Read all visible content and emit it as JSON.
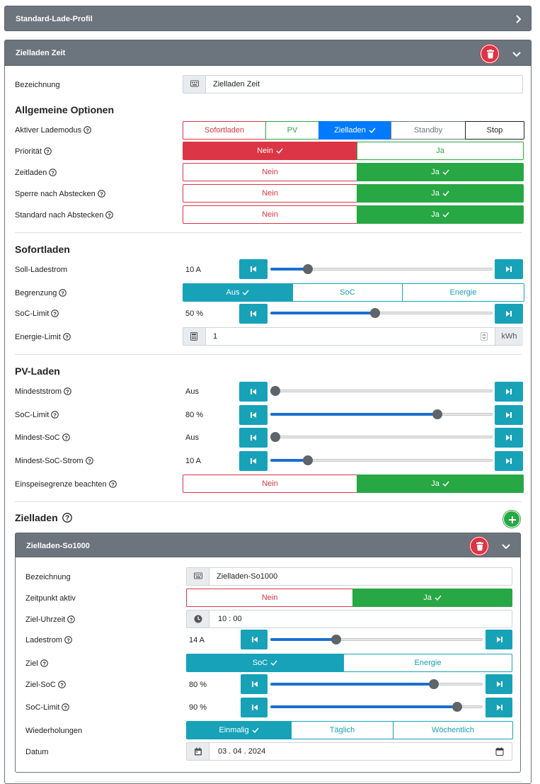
{
  "profile_header": {
    "title": "Standard-Lade-Profil"
  },
  "zielladen_zeit": {
    "title": "Zielladen Zeit",
    "bezeichnung": {
      "label": "Bezeichnung",
      "value": "Zielladen Zeit"
    },
    "allgemein": {
      "heading": "Allgemeine Optionen",
      "lademodus": {
        "label": "Aktiver Lademodus",
        "options": [
          "Sofortladen",
          "PV",
          "Zielladen",
          "Standby",
          "Stop"
        ],
        "selected": "Zielladen"
      },
      "prioritaet": {
        "label": "Priorität",
        "options": [
          "Nein",
          "Ja"
        ],
        "selected": "Nein"
      },
      "zeitladen": {
        "label": "Zeitladen",
        "options": [
          "Nein",
          "Ja"
        ],
        "selected": "Ja"
      },
      "sperre": {
        "label": "Sperre nach Abstecken",
        "options": [
          "Nein",
          "Ja"
        ],
        "selected": "Ja"
      },
      "standard": {
        "label": "Standard nach Abstecken",
        "options": [
          "Nein",
          "Ja"
        ],
        "selected": "Ja"
      }
    },
    "sofortladen": {
      "heading": "Sofortladen",
      "soll_ladestrom": {
        "label": "Soll-Ladestrom",
        "display": "10 A",
        "fraction": 0.17
      },
      "begrenzung": {
        "label": "Begrenzung",
        "options": [
          "Aus",
          "SoC",
          "Energie"
        ],
        "selected": "Aus"
      },
      "soc_limit": {
        "label": "SoC-Limit",
        "display": "50 %",
        "fraction": 0.47
      },
      "energie_limit": {
        "label": "Energie-Limit",
        "value": "1",
        "unit": "kWh"
      }
    },
    "pv_laden": {
      "heading": "PV-Laden",
      "mindeststrom": {
        "label": "Mindeststrom",
        "display": "Aus",
        "fraction": 0.0
      },
      "soc_limit": {
        "label": "SoC-Limit",
        "display": "80 %",
        "fraction": 0.75
      },
      "mindest_soc": {
        "label": "Mindest-SoC",
        "display": "Aus",
        "fraction": 0.0
      },
      "mindest_soc_strom": {
        "label": "Mindest-SoC-Strom",
        "display": "10 A",
        "fraction": 0.17
      },
      "einspeisegrenze": {
        "label": "Einspeisegrenze beachten",
        "options": [
          "Nein",
          "Ja"
        ],
        "selected": "Ja"
      }
    },
    "zielladen": {
      "heading": "Zielladen",
      "plan": {
        "title": "Zielladen-So1000",
        "bezeichnung": {
          "label": "Bezeichnung",
          "value": "Zielladen-So1000"
        },
        "zeitpunkt": {
          "label": "Zeitpunkt aktiv",
          "options": [
            "Nein",
            "Ja"
          ],
          "selected": "Ja"
        },
        "uhrzeit": {
          "label": "Ziel-Uhrzeit",
          "value": "10 : 00"
        },
        "ladestrom": {
          "label": "Ladestrom",
          "display": "14 A",
          "fraction": 0.31
        },
        "ziel": {
          "label": "Ziel",
          "options": [
            "SoC",
            "Energie"
          ],
          "selected": "SoC"
        },
        "ziel_soc": {
          "label": "Ziel-SoC",
          "display": "80 %",
          "fraction": 0.77
        },
        "soc_limit": {
          "label": "SoC-Limit",
          "display": "90 %",
          "fraction": 0.88
        },
        "wiederholungen": {
          "label": "Wiederholungen",
          "options": [
            "Einmalig",
            "Täglich",
            "Wöchentlich"
          ],
          "selected": "Einmalig"
        },
        "datum": {
          "label": "Datum",
          "value": "03 . 04 . 2024"
        }
      }
    }
  }
}
